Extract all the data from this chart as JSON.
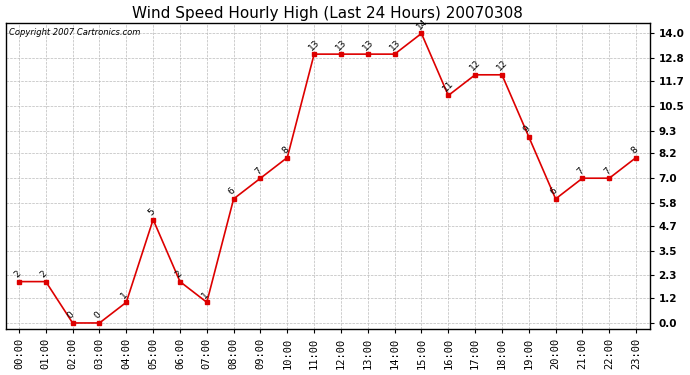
{
  "title": "Wind Speed Hourly High (Last 24 Hours) 20070308",
  "copyright_text": "Copyright 2007 Cartronics.com",
  "hours": [
    "00:00",
    "01:00",
    "02:00",
    "03:00",
    "04:00",
    "05:00",
    "06:00",
    "07:00",
    "08:00",
    "09:00",
    "10:00",
    "11:00",
    "12:00",
    "13:00",
    "14:00",
    "15:00",
    "16:00",
    "17:00",
    "18:00",
    "19:00",
    "20:00",
    "21:00",
    "22:00",
    "23:00"
  ],
  "values": [
    2,
    2,
    0,
    0,
    1,
    5,
    2,
    1,
    6,
    7,
    8,
    13,
    13,
    13,
    13,
    14,
    11,
    12,
    12,
    9,
    6,
    7,
    7,
    8
  ],
  "line_color": "#dd0000",
  "marker_color": "#dd0000",
  "background_color": "#ffffff",
  "plot_bg_color": "#ffffff",
  "grid_color": "#bbbbbb",
  "title_fontsize": 11,
  "tick_fontsize": 7.5,
  "label_fontsize": 7,
  "ylabel_ticks": [
    0.0,
    1.2,
    2.3,
    3.5,
    4.7,
    5.8,
    7.0,
    8.2,
    9.3,
    10.5,
    11.7,
    12.8,
    14.0
  ],
  "ylim": [
    -0.3,
    14.5
  ]
}
